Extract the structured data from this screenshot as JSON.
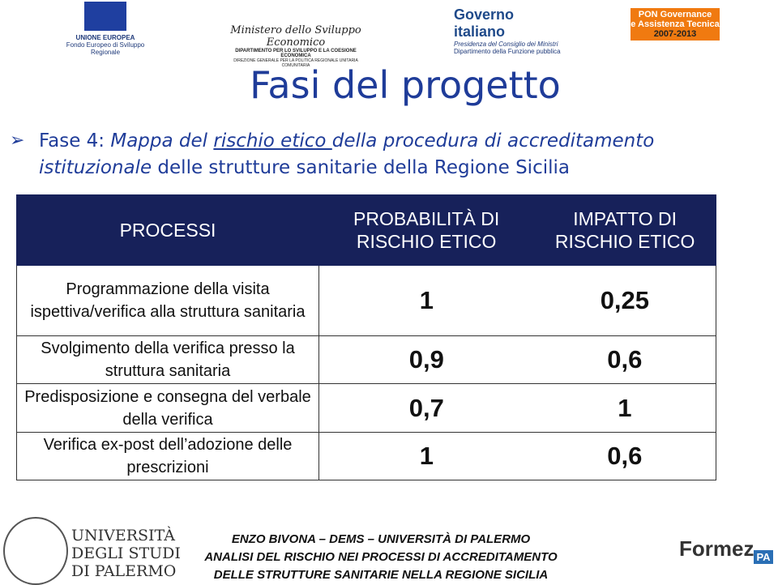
{
  "header": {
    "logos": [
      {
        "lines": [
          "UNIONE EUROPEA",
          "Fondo Europeo di Sviluppo Regionale"
        ]
      },
      {
        "lines": [
          "Ministero dello Sviluppo Economico",
          "DIPARTIMENTO PER LO SVILUPPO E LA COESIONE ECONOMICA",
          "DIREZIONE GENERALE PER LA POLITICA REGIONALE UNITARIA COMUNITARIA"
        ]
      },
      {
        "lines": [
          "Governo italiano",
          "Presidenza del Consiglio dei Ministri",
          "Dipartimento della Funzione pubblica"
        ]
      },
      {
        "lines": [
          "PON Governance",
          "e Assistenza Tecnica",
          "2007-2013"
        ]
      }
    ]
  },
  "title": "Fasi del progetto",
  "bullet": {
    "parts": [
      "Fase 4: ",
      "Mappa del ",
      "rischio etico ",
      "della procedura di accreditamento",
      "istituzionale",
      " delle strutture sanitarie della Regione Sicilia"
    ]
  },
  "table": {
    "columns": [
      "PROCESSI",
      "PROBABILITÀ DI RISCHIO ETICO",
      "IMPATTO DI RISCHIO ETICO"
    ],
    "rows": [
      [
        "Programmazione della visita ispettiva/verifica alla struttura sanitaria",
        "1",
        "0,25"
      ],
      [
        "Svolgimento della verifica presso la struttura sanitaria",
        "0,9",
        "0,6"
      ],
      [
        "Predisposizione e consegna del verbale della verifica",
        "0,7",
        "1"
      ],
      [
        "Verifica ex-post dell’adozione delle prescrizioni",
        "1",
        "0,6"
      ]
    ]
  },
  "footer": {
    "university": [
      "UNIVERSITÀ",
      "DEGLI STUDI",
      "DI PALERMO"
    ],
    "lines": [
      "ENZO BIVONA – DEMS – UNIVERSITÀ DI PALERMO",
      "ANALISI DEL RISCHIO NEI PROCESSI DI ACCREDITAMENTO",
      "DELLE STRUTTURE SANITARIE NELLA REGIONE SICILIA"
    ],
    "formez": [
      "Formez",
      "PA"
    ]
  }
}
